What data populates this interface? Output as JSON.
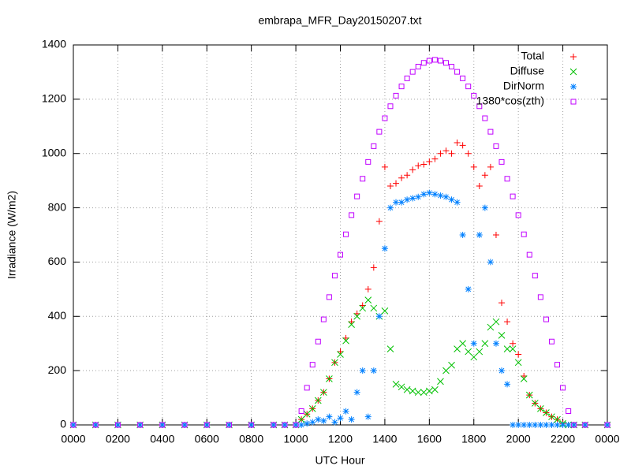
{
  "chart_data": {
    "type": "scatter",
    "title": "embrapa_MFR_Day20150207.txt",
    "xlabel": "UTC Hour",
    "ylabel": "Irradiance (W/m2)",
    "x": [
      0,
      1,
      2,
      3,
      4,
      5,
      6,
      7,
      8,
      9,
      9.5,
      10,
      10.25,
      10.5,
      10.75,
      11,
      11.25,
      11.5,
      11.75,
      12,
      12.25,
      12.5,
      12.75,
      13,
      13.25,
      13.5,
      13.75,
      14,
      14.25,
      14.5,
      14.75,
      15,
      15.25,
      15.5,
      15.75,
      16,
      16.25,
      16.5,
      16.75,
      17,
      17.25,
      17.5,
      17.75,
      18,
      18.25,
      18.5,
      18.75,
      19,
      19.25,
      19.5,
      19.75,
      20,
      20.25,
      20.5,
      20.75,
      21,
      21.25,
      21.5,
      21.75,
      22,
      22.25,
      22.5,
      23,
      24
    ],
    "series": [
      {
        "name": "Total",
        "color": "#ff0000",
        "marker": "plus",
        "values": [
          0,
          0,
          0,
          0,
          0,
          0,
          0,
          0,
          0,
          0,
          0,
          0,
          20,
          40,
          60,
          90,
          120,
          170,
          230,
          270,
          320,
          380,
          410,
          440,
          500,
          580,
          750,
          950,
          880,
          890,
          910,
          920,
          940,
          955,
          960,
          970,
          980,
          1000,
          1010,
          1000,
          1040,
          1030,
          1000,
          950,
          880,
          920,
          950,
          700,
          450,
          380,
          300,
          260,
          180,
          110,
          80,
          60,
          45,
          30,
          20,
          5,
          0,
          0,
          0,
          0
        ]
      },
      {
        "name": "Diffuse",
        "color": "#00c000",
        "marker": "cross",
        "values": [
          0,
          0,
          0,
          0,
          0,
          0,
          0,
          0,
          0,
          0,
          0,
          0,
          20,
          40,
          60,
          90,
          120,
          170,
          230,
          260,
          310,
          370,
          400,
          430,
          460,
          430,
          400,
          420,
          280,
          150,
          140,
          130,
          125,
          120,
          120,
          125,
          130,
          160,
          200,
          220,
          280,
          300,
          270,
          250,
          270,
          300,
          360,
          380,
          330,
          280,
          280,
          230,
          170,
          110,
          80,
          60,
          45,
          30,
          20,
          5,
          0,
          0,
          0,
          0
        ]
      },
      {
        "name": "DirNorm",
        "color": "#0080ff",
        "marker": "star",
        "values": [
          0,
          0,
          0,
          0,
          0,
          0,
          0,
          0,
          0,
          0,
          0,
          0,
          0,
          5,
          10,
          20,
          15,
          30,
          10,
          25,
          50,
          20,
          120,
          200,
          30,
          200,
          400,
          650,
          800,
          820,
          820,
          830,
          835,
          840,
          850,
          855,
          850,
          845,
          840,
          830,
          820,
          700,
          500,
          300,
          700,
          800,
          600,
          300,
          200,
          150,
          0,
          0,
          0,
          0,
          0,
          0,
          0,
          0,
          0,
          0,
          0,
          0,
          0,
          0
        ]
      },
      {
        "name": "1380*cos(zth)",
        "color": "#c000ff",
        "marker": "square",
        "values": [
          0,
          0,
          0,
          0,
          0,
          0,
          0,
          0,
          0,
          0,
          0,
          0,
          51,
          137,
          222,
          307,
          389,
          471,
          550,
          627,
          702,
          773,
          842,
          907,
          969,
          1027,
          1080,
          1130,
          1174,
          1213,
          1247,
          1277,
          1301,
          1320,
          1334,
          1342,
          1345,
          1342,
          1334,
          1320,
          1301,
          1277,
          1247,
          1213,
          1174,
          1130,
          1080,
          1027,
          969,
          907,
          842,
          773,
          702,
          627,
          550,
          471,
          389,
          307,
          222,
          137,
          51,
          0,
          0,
          0
        ]
      }
    ],
    "xlim": [
      0,
      24
    ],
    "xticks": [
      {
        "value": 0,
        "label": "0000"
      },
      {
        "value": 2,
        "label": "0200"
      },
      {
        "value": 4,
        "label": "0400"
      },
      {
        "value": 6,
        "label": "0600"
      },
      {
        "value": 8,
        "label": "0800"
      },
      {
        "value": 10,
        "label": "1000"
      },
      {
        "value": 12,
        "label": "1200"
      },
      {
        "value": 14,
        "label": "1400"
      },
      {
        "value": 16,
        "label": "1600"
      },
      {
        "value": 18,
        "label": "1800"
      },
      {
        "value": 20,
        "label": "2000"
      },
      {
        "value": 22,
        "label": "2200"
      },
      {
        "value": 24,
        "label": "0000"
      }
    ],
    "ylim": [
      0,
      1400
    ],
    "yticks": [
      0,
      200,
      400,
      600,
      800,
      1000,
      1200,
      1400
    ],
    "grid": true,
    "legend": "top-right"
  }
}
